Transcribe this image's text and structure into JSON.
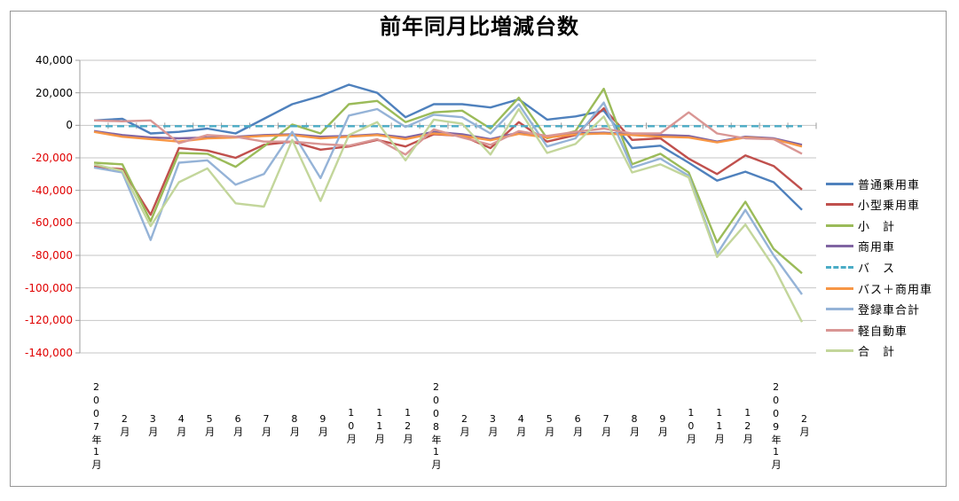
{
  "title": "前年同月比増減台数",
  "colors": {
    "negative_tick": "#e00000",
    "positive_tick": "#000000",
    "gridline": "#c6c6c6",
    "axis": "#9d9d9d",
    "frame_border": "#969696"
  },
  "chart_data": {
    "type": "line",
    "title": "前年同月比増減台数",
    "legend_position": "right",
    "grid": true,
    "categories": [
      "2007年1月",
      "2月",
      "3月",
      "4月",
      "5月",
      "6月",
      "7月",
      "8月",
      "9月",
      "10月",
      "11月",
      "12月",
      "2008年1月",
      "2月",
      "3月",
      "4月",
      "5月",
      "6月",
      "7月",
      "8月",
      "9月",
      "10月",
      "11月",
      "12月",
      "2009年1月",
      "2月"
    ],
    "y_axis": {
      "min": -140000,
      "max": 40000,
      "step": 20000,
      "tick_labels": [
        "40,000",
        "20,000",
        "0",
        "-20,000",
        "-40,000",
        "-60,000",
        "-80,000",
        "-100,000",
        "-120,000",
        "-140,000"
      ]
    },
    "series": [
      {
        "name": "普通乗用車",
        "color": "#4F81BD",
        "dash": false,
        "values": [
          3000,
          4000,
          -5000,
          -4000,
          -2000,
          -5000,
          4000,
          13000,
          18000,
          25000,
          20000,
          5000,
          13000,
          13000,
          11000,
          16000,
          3500,
          5500,
          9000,
          -14000,
          -12500,
          -23000,
          -34000,
          -28500,
          -35000,
          -52000
        ]
      },
      {
        "name": "小型乗用車",
        "color": "#C0504D",
        "dash": false,
        "values": [
          -25500,
          -27000,
          -55000,
          -14000,
          -15500,
          -20000,
          -12000,
          -10000,
          -15000,
          -13000,
          -9000,
          -13000,
          -5500,
          -6500,
          -14000,
          2000,
          -10000,
          -6000,
          10500,
          -9000,
          -8000,
          -20500,
          -30000,
          -18500,
          -25000,
          -39500
        ]
      },
      {
        "name": "小　計",
        "color": "#9BBB59",
        "dash": false,
        "values": [
          -23000,
          -24000,
          -59000,
          -17000,
          -17500,
          -25500,
          -13000,
          500,
          -5000,
          13000,
          15000,
          2000,
          8000,
          9000,
          -2000,
          17000,
          -8000,
          -3500,
          22500,
          -24000,
          -17500,
          -29000,
          -72000,
          -47000,
          -76000,
          -91000
        ]
      },
      {
        "name": "商用車",
        "color": "#8064A2",
        "dash": false,
        "values": [
          -3500,
          -6000,
          -7500,
          -8000,
          -7500,
          -7000,
          -6000,
          -5500,
          -7000,
          -6500,
          -5500,
          -7500,
          -4000,
          -5500,
          -8500,
          -4500,
          -7000,
          -5000,
          -4500,
          -5500,
          -6000,
          -6500,
          -10000,
          -7000,
          -8000,
          -12000
        ]
      },
      {
        "name": "バ　ス",
        "color": "#4BACC6",
        "dash": true,
        "values": [
          -500,
          -500,
          -500,
          -500,
          -500,
          -500,
          -500,
          -500,
          -500,
          -500,
          -500,
          -500,
          -500,
          -500,
          -500,
          -500,
          -500,
          -500,
          -500,
          -500,
          -500,
          -500,
          -500,
          -500,
          -500,
          -500
        ]
      },
      {
        "name": "バス＋商用車",
        "color": "#F79646",
        "dash": false,
        "values": [
          -4000,
          -7000,
          -8500,
          -10000,
          -8000,
          -7500,
          -6500,
          -6000,
          -8000,
          -7000,
          -6000,
          -8500,
          -5000,
          -6500,
          -9200,
          -5200,
          -7500,
          -5600,
          -5000,
          -6000,
          -7000,
          -7500,
          -10500,
          -7500,
          -8500,
          -13000
        ]
      },
      {
        "name": "登録車合計",
        "color": "#95B3D7",
        "dash": false,
        "values": [
          -26000,
          -29000,
          -70500,
          -23000,
          -21500,
          -36500,
          -30000,
          -4000,
          -32500,
          6000,
          10000,
          -1000,
          6500,
          5000,
          -5000,
          13000,
          -13000,
          -8000,
          14000,
          -26000,
          -20500,
          -31000,
          -79000,
          -52000,
          -80000,
          -104000
        ]
      },
      {
        "name": "軽自動車",
        "color": "#D99694",
        "dash": false,
        "values": [
          3000,
          2500,
          3000,
          -11000,
          -6000,
          -7000,
          -10000,
          -10000,
          -11500,
          -12500,
          -8500,
          -18000,
          -2500,
          -7500,
          -12000,
          -3500,
          -6500,
          -4000,
          -2000,
          -5000,
          -5000,
          8000,
          -5000,
          -8000,
          -8500,
          -17500
        ]
      },
      {
        "name": "合　計",
        "color": "#C3D69B",
        "dash": false,
        "values": [
          -24000,
          -28000,
          -62000,
          -35000,
          -26500,
          -48000,
          -50000,
          -9000,
          -46500,
          -6000,
          2000,
          -21500,
          3500,
          1000,
          -18000,
          10000,
          -17000,
          -11500,
          5500,
          -29000,
          -24000,
          -32000,
          -81000,
          -61000,
          -87000,
          -121000
        ]
      }
    ]
  }
}
